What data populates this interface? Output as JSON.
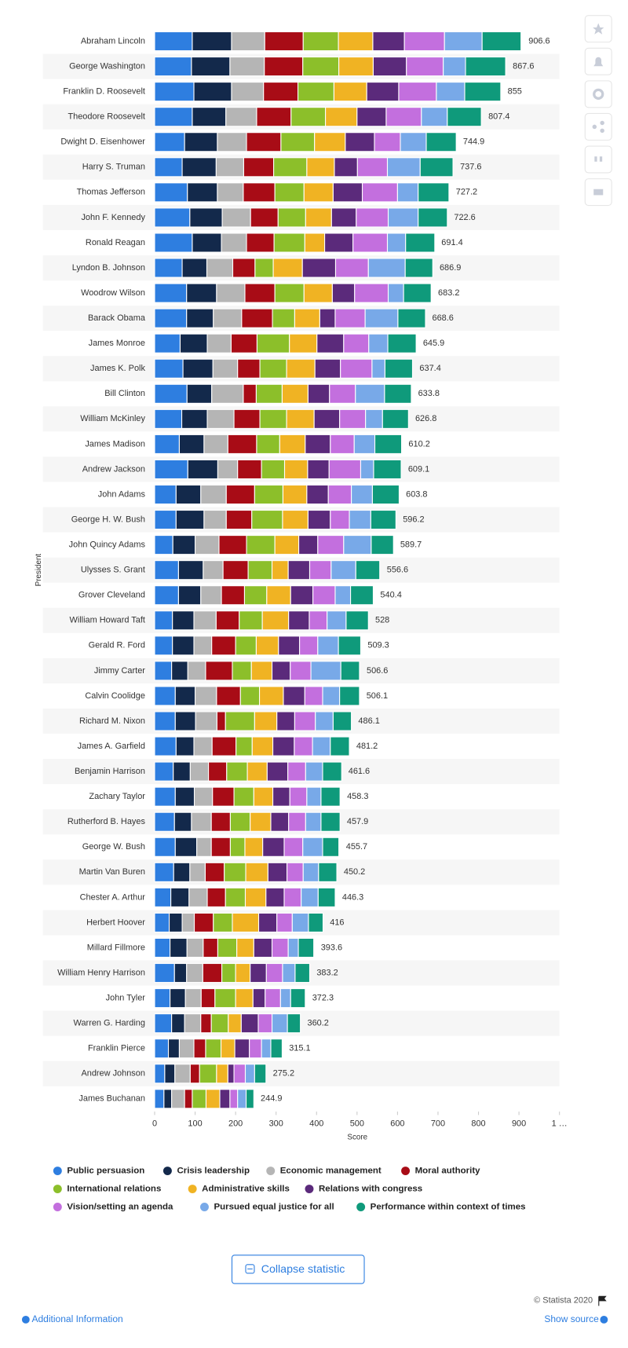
{
  "chart_data": {
    "type": "stacked-bar-horizontal",
    "y_label": "President",
    "x_label": "Score",
    "categories": [
      "Abraham Lincoln",
      "George Washington",
      "Franklin D. Roosevelt",
      "Theodore Roosevelt",
      "Dwight D. Eisenhower",
      "Harry S. Truman",
      "Thomas Jefferson",
      "John F. Kennedy",
      "Ronald Reagan",
      "Lyndon B. Johnson",
      "Woodrow Wilson",
      "Barack Obama",
      "James Monroe",
      "James K. Polk",
      "Bill Clinton",
      "William McKinley",
      "James Madison",
      "Andrew Jackson",
      "John Adams",
      "George H. W. Bush",
      "John Quincy Adams",
      "Ulysses S. Grant",
      "Grover Cleveland",
      "William Howard Taft",
      "Gerald R. Ford",
      "Jimmy Carter",
      "Calvin Coolidge",
      "Richard M. Nixon",
      "James A. Garfield",
      "Benjamin Harrison",
      "Zachary Taylor",
      "Rutherford B. Hayes",
      "George W. Bush",
      "Martin Van Buren",
      "Chester A. Arthur",
      "Herbert Hoover",
      "Millard Fillmore",
      "William Henry Harrison",
      "John Tyler",
      "Warren G. Harding",
      "Franklin Pierce",
      "Andrew Johnson",
      "James Buchanan"
    ],
    "totals": [
      906.6,
      867.6,
      855,
      807.4,
      744.9,
      737.6,
      727.2,
      722.6,
      691.4,
      686.9,
      683.2,
      668.6,
      645.9,
      637.4,
      633.8,
      626.8,
      610.2,
      609.1,
      603.8,
      596.2,
      589.7,
      556.6,
      540.4,
      528,
      509.3,
      506.6,
      506.1,
      486.1,
      481.2,
      461.6,
      458.3,
      457.9,
      455.7,
      450.2,
      446.3,
      416,
      393.6,
      383.2,
      372.3,
      360.2,
      315.1,
      275.2,
      244.9
    ],
    "series": [
      {
        "name": "Public persuasion",
        "color": "#2e7ee0",
        "values": [
          93,
          91,
          97,
          93,
          74,
          68,
          81,
          87,
          93,
          68,
          79,
          79,
          63,
          70,
          80,
          67,
          61,
          82,
          53,
          53,
          45,
          59,
          59,
          44,
          44,
          42,
          51,
          51,
          53,
          46,
          51,
          49,
          51,
          47,
          40,
          36,
          38,
          49,
          38,
          42,
          34,
          25,
          23
        ]
      },
      {
        "name": "Crisis leadership",
        "color": "#13294b",
        "values": [
          97,
          95,
          93,
          83,
          81,
          84,
          74,
          80,
          72,
          61,
          74,
          66,
          67,
          74,
          61,
          63,
          61,
          74,
          61,
          69,
          55,
          61,
          55,
          53,
          53,
          40,
          49,
          50,
          44,
          42,
          47,
          42,
          53,
          40,
          45,
          32,
          42,
          30,
          38,
          32,
          27,
          25,
          19
        ]
      },
      {
        "name": "Economic management",
        "color": "#b5b5b5",
        "values": [
          82,
          85,
          79,
          76,
          72,
          68,
          64,
          70,
          62,
          64,
          70,
          70,
          59,
          61,
          78,
          66,
          59,
          49,
          63,
          55,
          59,
          49,
          51,
          55,
          44,
          44,
          53,
          53,
          45,
          45,
          45,
          49,
          36,
          38,
          45,
          30,
          40,
          40,
          39,
          40,
          36,
          38,
          32
        ]
      },
      {
        "name": "Moral authority",
        "color": "#a80c16",
        "values": [
          95,
          95,
          85,
          85,
          85,
          74,
          78,
          68,
          68,
          55,
          74,
          76,
          64,
          55,
          32,
          64,
          71,
          59,
          70,
          63,
          68,
          62,
          57,
          57,
          59,
          66,
          59,
          21,
          59,
          45,
          53,
          47,
          47,
          47,
          45,
          47,
          36,
          47,
          34,
          26,
          29,
          23,
          19
        ]
      },
      {
        "name": "International relations",
        "color": "#8cbf2a",
        "values": [
          87,
          89,
          89,
          85,
          83,
          82,
          72,
          68,
          76,
          45,
          72,
          55,
          80,
          66,
          64,
          66,
          57,
          57,
          70,
          76,
          70,
          59,
          55,
          57,
          51,
          47,
          47,
          72,
          40,
          51,
          49,
          49,
          36,
          53,
          49,
          47,
          47,
          34,
          51,
          42,
          38,
          42,
          34
        ]
      },
      {
        "name": "Administrative skills",
        "color": "#f0b323",
        "values": [
          85,
          85,
          81,
          78,
          76,
          68,
          72,
          64,
          49,
          72,
          70,
          62,
          68,
          70,
          64,
          68,
          63,
          57,
          59,
          63,
          59,
          40,
          59,
          65,
          55,
          51,
          59,
          55,
          51,
          49,
          47,
          51,
          44,
          55,
          51,
          65,
          42,
          36,
          43,
          32,
          34,
          28,
          34
        ]
      },
      {
        "name": "Relations with congress",
        "color": "#5b2a7b",
        "values": [
          78,
          82,
          79,
          72,
          72,
          57,
          72,
          61,
          70,
          82,
          55,
          38,
          66,
          63,
          53,
          63,
          62,
          53,
          53,
          55,
          47,
          53,
          55,
          51,
          52,
          45,
          53,
          44,
          53,
          51,
          42,
          44,
          53,
          47,
          45,
          45,
          45,
          40,
          30,
          42,
          36,
          15,
          25
        ]
      },
      {
        "name": "Vision/setting an agenda",
        "color": "#c36fde",
        "values": [
          99,
          91,
          93,
          87,
          64,
          74,
          87,
          79,
          85,
          81,
          83,
          74,
          62,
          78,
          64,
          64,
          59,
          78,
          57,
          47,
          64,
          53,
          55,
          44,
          45,
          51,
          44,
          51,
          45,
          44,
          42,
          42,
          46,
          40,
          42,
          38,
          40,
          40,
          38,
          34,
          30,
          28,
          19
        ]
      },
      {
        "name": "Pursued equal justice for all",
        "color": "#78a9e8",
        "values": [
          93,
          55,
          70,
          64,
          64,
          81,
          51,
          74,
          45,
          91,
          38,
          81,
          47,
          32,
          72,
          42,
          51,
          32,
          52,
          53,
          68,
          61,
          38,
          47,
          51,
          74,
          42,
          44,
          44,
          42,
          35,
          38,
          49,
          38,
          42,
          40,
          25,
          31,
          25,
          38,
          23,
          23,
          21
        ]
      },
      {
        "name": "Performance within context of times",
        "color": "#0f9a7b",
        "values": [
          96,
          99,
          89,
          84,
          74,
          81,
          76,
          72,
          72,
          68,
          68,
          68,
          70,
          68,
          66,
          64,
          66,
          68,
          66,
          62,
          55,
          59,
          56,
          55,
          55,
          46,
          49,
          45,
          47,
          47,
          47,
          47,
          40,
          45,
          42,
          36,
          38,
          36,
          36,
          32,
          28,
          28,
          19
        ]
      }
    ],
    "xlim": [
      0,
      1000
    ],
    "xticks": [
      0,
      100,
      200,
      300,
      400,
      500,
      600,
      700,
      800,
      900,
      {
        "value": 1000,
        "label": "1 …"
      }
    ]
  },
  "footer": {
    "button": "Collapse statistic",
    "copyright": "© Statista 2020",
    "info": "Additional Information",
    "source": "Show source"
  }
}
